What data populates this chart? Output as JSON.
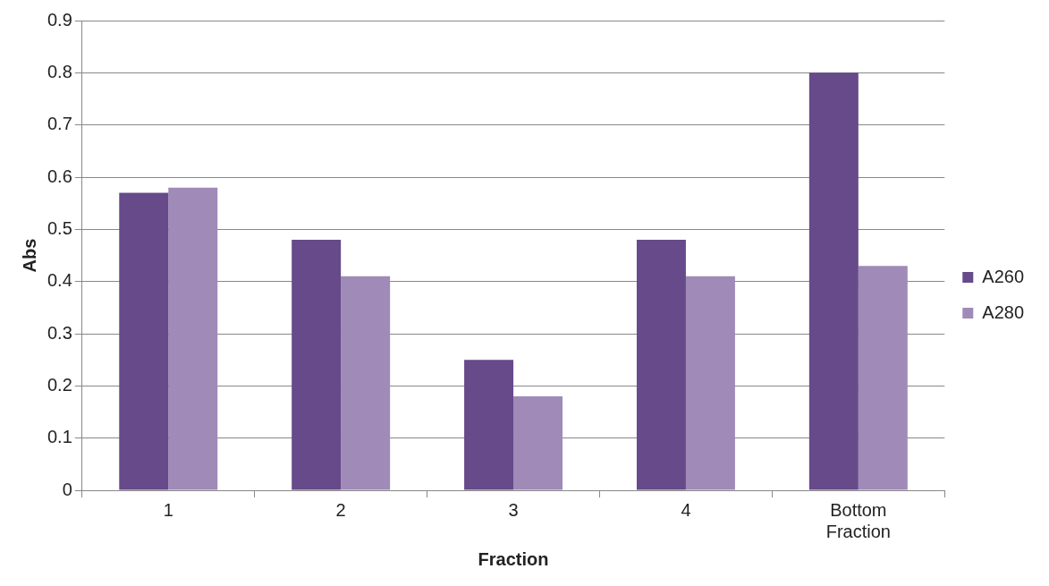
{
  "chart_data": {
    "type": "bar",
    "xlabel": "Fraction",
    "ylabel": "Abs",
    "categories": [
      "1",
      "2",
      "3",
      "4",
      "Bottom Fraction"
    ],
    "series": [
      {
        "name": "A260",
        "color": "#664a8a",
        "values": [
          0.57,
          0.48,
          0.25,
          0.48,
          0.8
        ]
      },
      {
        "name": "A280",
        "color": "#9f8ab8",
        "values": [
          0.58,
          0.41,
          0.18,
          0.41,
          0.43
        ]
      }
    ],
    "ylim": [
      0,
      0.9
    ],
    "yticks": [
      0,
      0.1,
      0.2,
      0.3,
      0.4,
      0.5,
      0.6,
      0.7,
      0.8,
      0.9
    ],
    "grid": "y",
    "legend": "right"
  }
}
